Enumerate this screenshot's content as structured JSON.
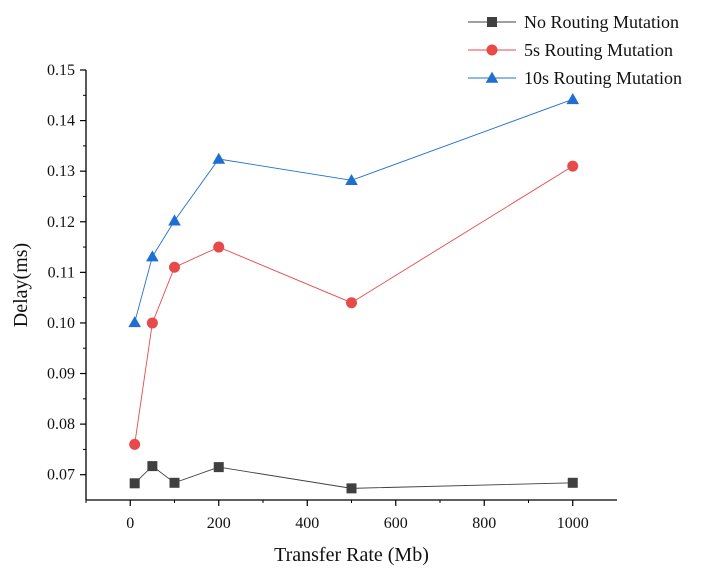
{
  "chart_data": {
    "type": "line",
    "title": "",
    "xlabel": "Transfer Rate (Mb)",
    "ylabel": "Delay(ms)",
    "xlim": [
      -100,
      1100
    ],
    "ylim": [
      0.065,
      0.15
    ],
    "x_ticks": [
      0,
      200,
      400,
      600,
      800,
      1000
    ],
    "x_tick_labels": [
      "0",
      "200",
      "400",
      "600",
      "800",
      "1000"
    ],
    "y_ticks": [
      0.07,
      0.08,
      0.09,
      0.1,
      0.11,
      0.12,
      0.13,
      0.14,
      0.15
    ],
    "y_tick_labels": [
      "0.07",
      "0.08",
      "0.09",
      "0.10",
      "0.11",
      "0.12",
      "0.13",
      "0.14",
      "0.15"
    ],
    "grid": false,
    "legend_position": "top-right",
    "x": [
      10,
      50,
      100,
      200,
      500,
      1000
    ],
    "series": [
      {
        "name": "No Routing Mutation",
        "values": [
          0.0683,
          0.0717,
          0.0684,
          0.0715,
          0.0673,
          0.0684
        ],
        "color": "#404040",
        "marker": "square"
      },
      {
        "name": "5s Routing Mutation",
        "values": [
          0.076,
          0.1,
          0.111,
          0.115,
          0.104,
          0.131
        ],
        "color": "#e84a4a",
        "marker": "circle"
      },
      {
        "name": "10s Routing Mutation",
        "values": [
          0.1001,
          0.1131,
          0.1202,
          0.1324,
          0.1282,
          0.1442
        ],
        "color": "#1f6fd1",
        "marker": "triangle"
      }
    ]
  }
}
